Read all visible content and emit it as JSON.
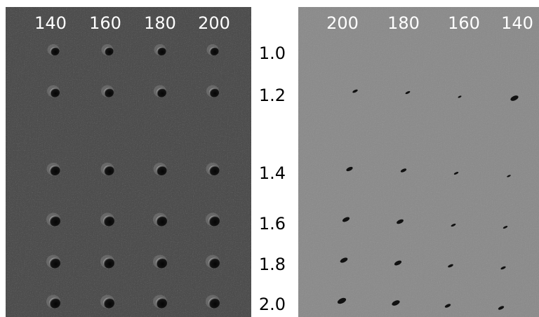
{
  "left_panel": {
    "column_labels": [
      "140",
      "160",
      "180",
      "200"
    ]
  },
  "right_panel": {
    "column_labels": [
      "200",
      "180",
      "160",
      "140"
    ]
  },
  "row_labels": [
    "1.0",
    "1.2",
    "1.4",
    "1.6",
    "1.8",
    "2.0"
  ]
}
